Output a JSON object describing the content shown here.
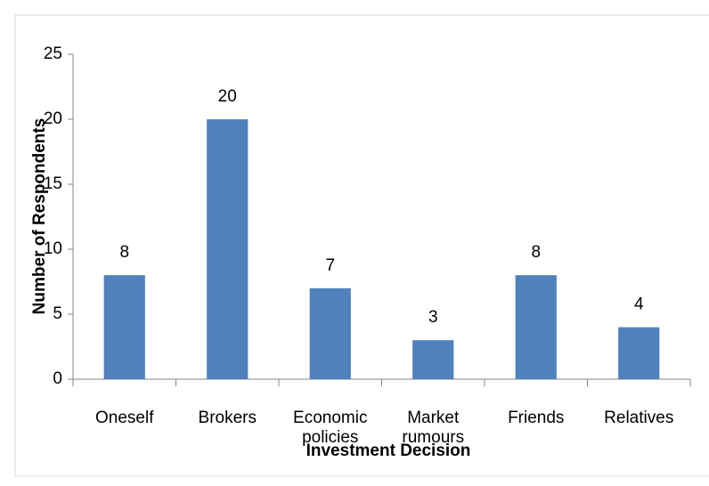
{
  "chart_data": {
    "type": "bar",
    "categories": [
      "Oneself",
      "Brokers",
      "Economic policies",
      "Market rumours",
      "Friends",
      "Relatives"
    ],
    "values": [
      8,
      20,
      7,
      3,
      8,
      4
    ],
    "color": "#4f81bd",
    "xlabel": "Investment Decision",
    "ylabel": "Number of Respondents",
    "ylim": [
      0,
      25
    ],
    "yticks": [
      0,
      5,
      10,
      15,
      20,
      25
    ],
    "data_labels": true
  }
}
